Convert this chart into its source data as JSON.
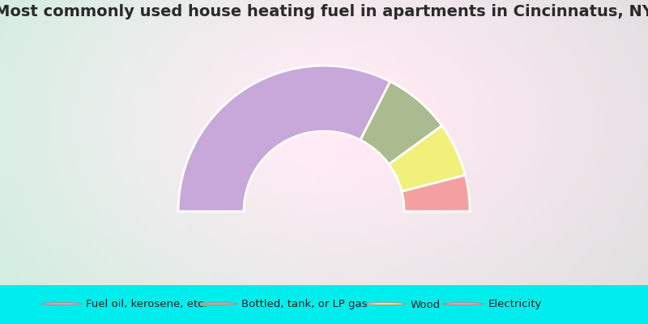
{
  "title": "Most commonly used house heating fuel in apartments in Cincinnatus, NY",
  "segments": [
    {
      "label": "Fuel oil, kerosene, etc.",
      "value": 65,
      "color": "#C8A8D8"
    },
    {
      "label": "Bottled, tank, or LP gas",
      "value": 15,
      "color": "#AABB90"
    },
    {
      "label": "Wood",
      "value": 12,
      "color": "#F0F07A"
    },
    {
      "label": "Electricity",
      "value": 8,
      "color": "#F4A0A0"
    }
  ],
  "background_color": "#00EDED",
  "title_color": "#2A2A2A",
  "title_fontsize": 14,
  "legend_fontsize": 9.5,
  "outer_r": 1.0,
  "inner_r": 0.55
}
